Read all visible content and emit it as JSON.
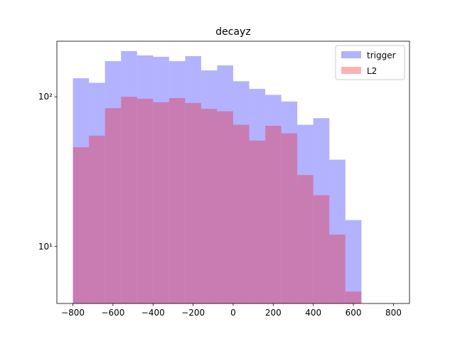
{
  "chart_data": {
    "type": "histogram",
    "title": "decayz",
    "bins": [
      -800,
      -720,
      -640,
      -560,
      -480,
      -400,
      -320,
      -240,
      -160,
      -80,
      0,
      80,
      160,
      240,
      320,
      400,
      480,
      560,
      640,
      720,
      800
    ],
    "series": [
      {
        "name": "trigger",
        "color": "#0000ff",
        "values": [
          133,
          124,
          173,
          202,
          189,
          185,
          173,
          187,
          150,
          162,
          127,
          113,
          103,
          93,
          65,
          72,
          38,
          15,
          0,
          0
        ]
      },
      {
        "name": "L2",
        "color": "#ff0000",
        "values": [
          46,
          55,
          84,
          100,
          97,
          92,
          98,
          91,
          83,
          80,
          65,
          51,
          64,
          57,
          30,
          22,
          12,
          5,
          0,
          0
        ]
      }
    ],
    "alpha": 0.3,
    "xlim": [
      -880,
      880
    ],
    "xticks": [
      {
        "value": -800,
        "label": "−800"
      },
      {
        "value": -600,
        "label": "−600"
      },
      {
        "value": -400,
        "label": "−400"
      },
      {
        "value": -200,
        "label": "−200"
      },
      0,
      200,
      400,
      600,
      800
    ],
    "ylim": [
      4.16,
      235
    ],
    "yticks": [
      {
        "value": 10,
        "label": "10¹"
      },
      {
        "value": 100,
        "label": "10²"
      }
    ],
    "log_y": true,
    "legend": "upper right"
  }
}
